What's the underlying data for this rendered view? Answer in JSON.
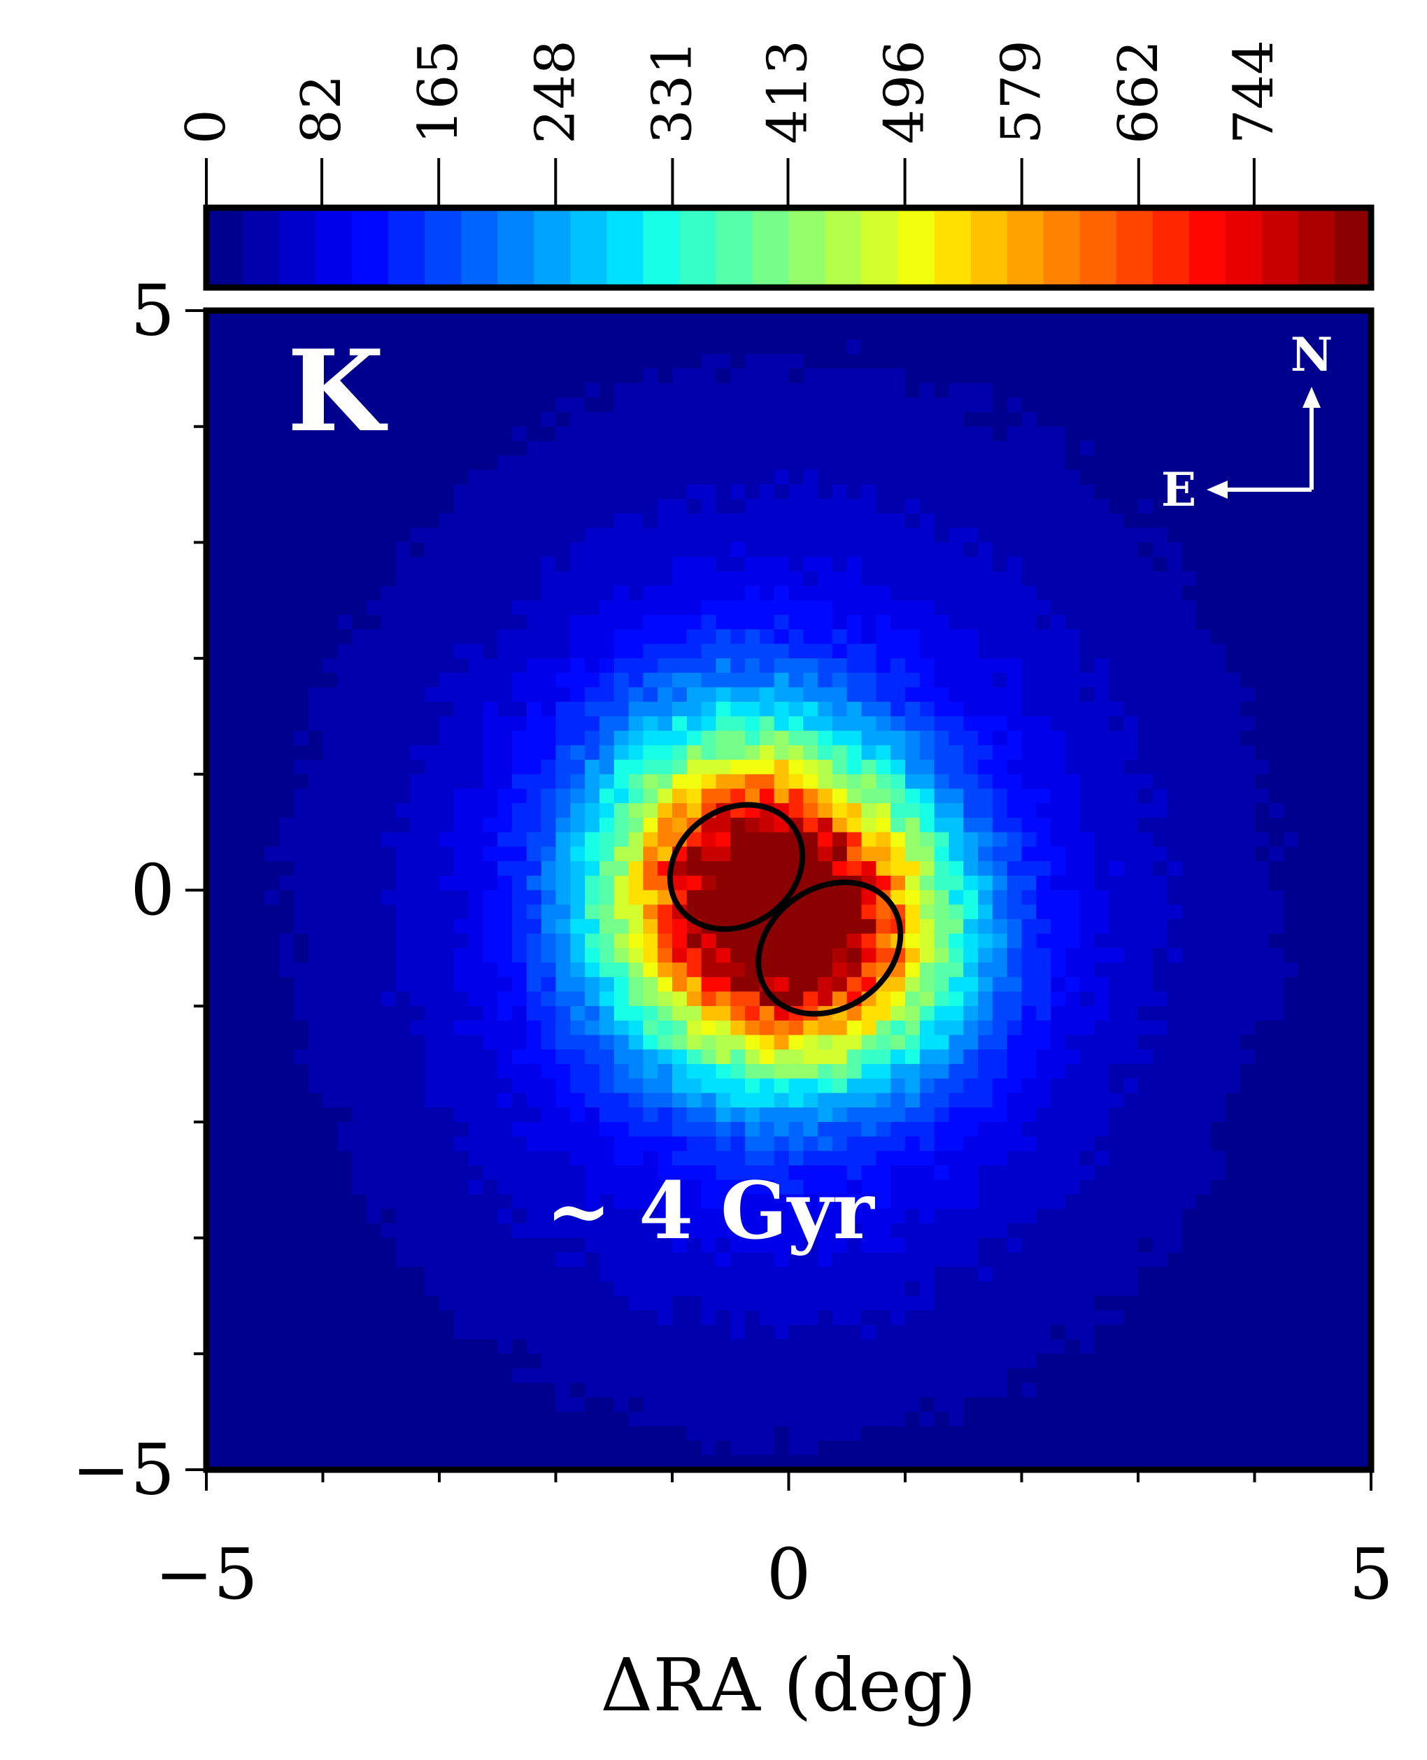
{
  "chart_data": {
    "type": "heatmap",
    "panel_label": "K",
    "annotation": "~ 4 Gyr",
    "xlabel": "ΔRA (deg)",
    "ylabel": "",
    "xlim": [
      -5,
      5
    ],
    "ylim": [
      -5,
      5
    ],
    "x_ticks": [
      "−5",
      "0",
      "5"
    ],
    "y_ticks": [
      "−5",
      "0",
      "5"
    ],
    "colorbar": {
      "range": [
        0,
        827
      ],
      "tick_labels": [
        "0",
        "82",
        "165",
        "248",
        "331",
        "413",
        "496",
        "579",
        "662",
        "744"
      ],
      "colors": [
        "#00008f",
        "#0000ad",
        "#0000cc",
        "#0000ea",
        "#0008ff",
        "#0027ff",
        "#0046ff",
        "#0065ff",
        "#0084ff",
        "#00a3ff",
        "#00c2ff",
        "#00e1ff",
        "#18ffe7",
        "#37ffc8",
        "#56ffa9",
        "#75ff8a",
        "#94ff6b",
        "#b3ff4c",
        "#d2ff2d",
        "#f1ff0e",
        "#ffe000",
        "#ffc100",
        "#ffa200",
        "#ff8300",
        "#ff6400",
        "#ff4500",
        "#ff2600",
        "#ff0700",
        "#e80000",
        "#c90000",
        "#aa0000",
        "#8b0000"
      ]
    },
    "density_components": [
      {
        "cx": -0.45,
        "cy": 0.1,
        "sx": 0.85,
        "sy": 0.95,
        "amp": 520
      },
      {
        "cx": 0.3,
        "cy": -0.4,
        "sx": 0.85,
        "sy": 0.8,
        "amp": 470
      },
      {
        "cx": -0.1,
        "cy": -0.3,
        "sx": 1.9,
        "sy": 2.1,
        "amp": 120
      },
      {
        "cx": 0.0,
        "cy": 0.2,
        "sx": 3.0,
        "sy": 3.2,
        "amp": 45
      }
    ],
    "overlay_ellipses": [
      {
        "cx": -0.45,
        "cy": 0.2,
        "a": 0.6,
        "b": 0.5,
        "angle_deg": 35
      },
      {
        "cx": 0.35,
        "cy": -0.5,
        "a": 0.65,
        "b": 0.52,
        "angle_deg": 35
      }
    ],
    "compass": {
      "north": "N",
      "east": "E"
    }
  }
}
